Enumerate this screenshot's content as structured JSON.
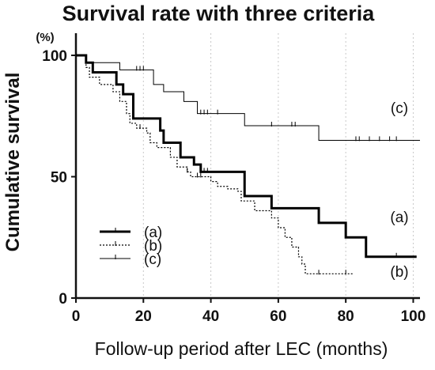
{
  "chart_data": {
    "type": "line",
    "title": "Survival rate with three criteria",
    "unit_label": "(%)",
    "xlabel": "Follow-up period after LEC (months)",
    "ylabel": "Cumulative survival",
    "xlim": [
      0,
      102
    ],
    "ylim": [
      0,
      100
    ],
    "x_ticks": [
      0,
      20,
      40,
      60,
      80,
      100
    ],
    "y_ticks": [
      0,
      50,
      100
    ],
    "grid": true,
    "legend_position": "lower-left",
    "series": [
      {
        "name": "(a)",
        "line_style": "thick-solid",
        "color": "#000000",
        "end_label": "(a)",
        "steps": [
          [
            0,
            100
          ],
          [
            3,
            97
          ],
          [
            5,
            93
          ],
          [
            12,
            88
          ],
          [
            14,
            84
          ],
          [
            17,
            74
          ],
          [
            25,
            69
          ],
          [
            26,
            64
          ],
          [
            31,
            58
          ],
          [
            35,
            55
          ],
          [
            37,
            52
          ],
          [
            50,
            42
          ],
          [
            58,
            37
          ],
          [
            72,
            31
          ],
          [
            80,
            25
          ],
          [
            86,
            17
          ],
          [
            101,
            17
          ]
        ],
        "censored": [
          17,
          38,
          39,
          95
        ]
      },
      {
        "name": "(b)",
        "line_style": "dotted",
        "color": "#000000",
        "end_label": "(b)",
        "steps": [
          [
            0,
            100
          ],
          [
            3,
            95
          ],
          [
            4,
            91
          ],
          [
            7,
            88
          ],
          [
            11,
            85
          ],
          [
            13,
            81
          ],
          [
            15,
            76
          ],
          [
            16,
            72
          ],
          [
            18,
            70
          ],
          [
            21,
            68
          ],
          [
            22,
            64
          ],
          [
            24,
            62
          ],
          [
            28,
            58
          ],
          [
            30,
            54
          ],
          [
            33,
            52
          ],
          [
            34,
            50
          ],
          [
            40,
            48
          ],
          [
            42,
            46
          ],
          [
            45,
            45
          ],
          [
            48,
            44
          ],
          [
            49,
            40
          ],
          [
            53,
            36
          ],
          [
            58,
            33
          ],
          [
            60,
            29
          ],
          [
            62,
            25
          ],
          [
            64,
            21
          ],
          [
            66,
            17
          ],
          [
            67,
            14
          ],
          [
            68,
            10
          ],
          [
            82,
            10
          ]
        ],
        "censored": [
          19,
          33,
          36,
          37,
          72,
          80
        ]
      },
      {
        "name": "(c)",
        "line_style": "thin-solid",
        "color": "#000000",
        "end_label": "(c)",
        "steps": [
          [
            0,
            100
          ],
          [
            3,
            97
          ],
          [
            13,
            94
          ],
          [
            23,
            88
          ],
          [
            26,
            85
          ],
          [
            32,
            81
          ],
          [
            36,
            76
          ],
          [
            50,
            71
          ],
          [
            72,
            65
          ],
          [
            102,
            65
          ]
        ],
        "censored": [
          18,
          19,
          20,
          37,
          38,
          39,
          42,
          58,
          64,
          65,
          83,
          84,
          87,
          90,
          93,
          95
        ]
      }
    ]
  }
}
